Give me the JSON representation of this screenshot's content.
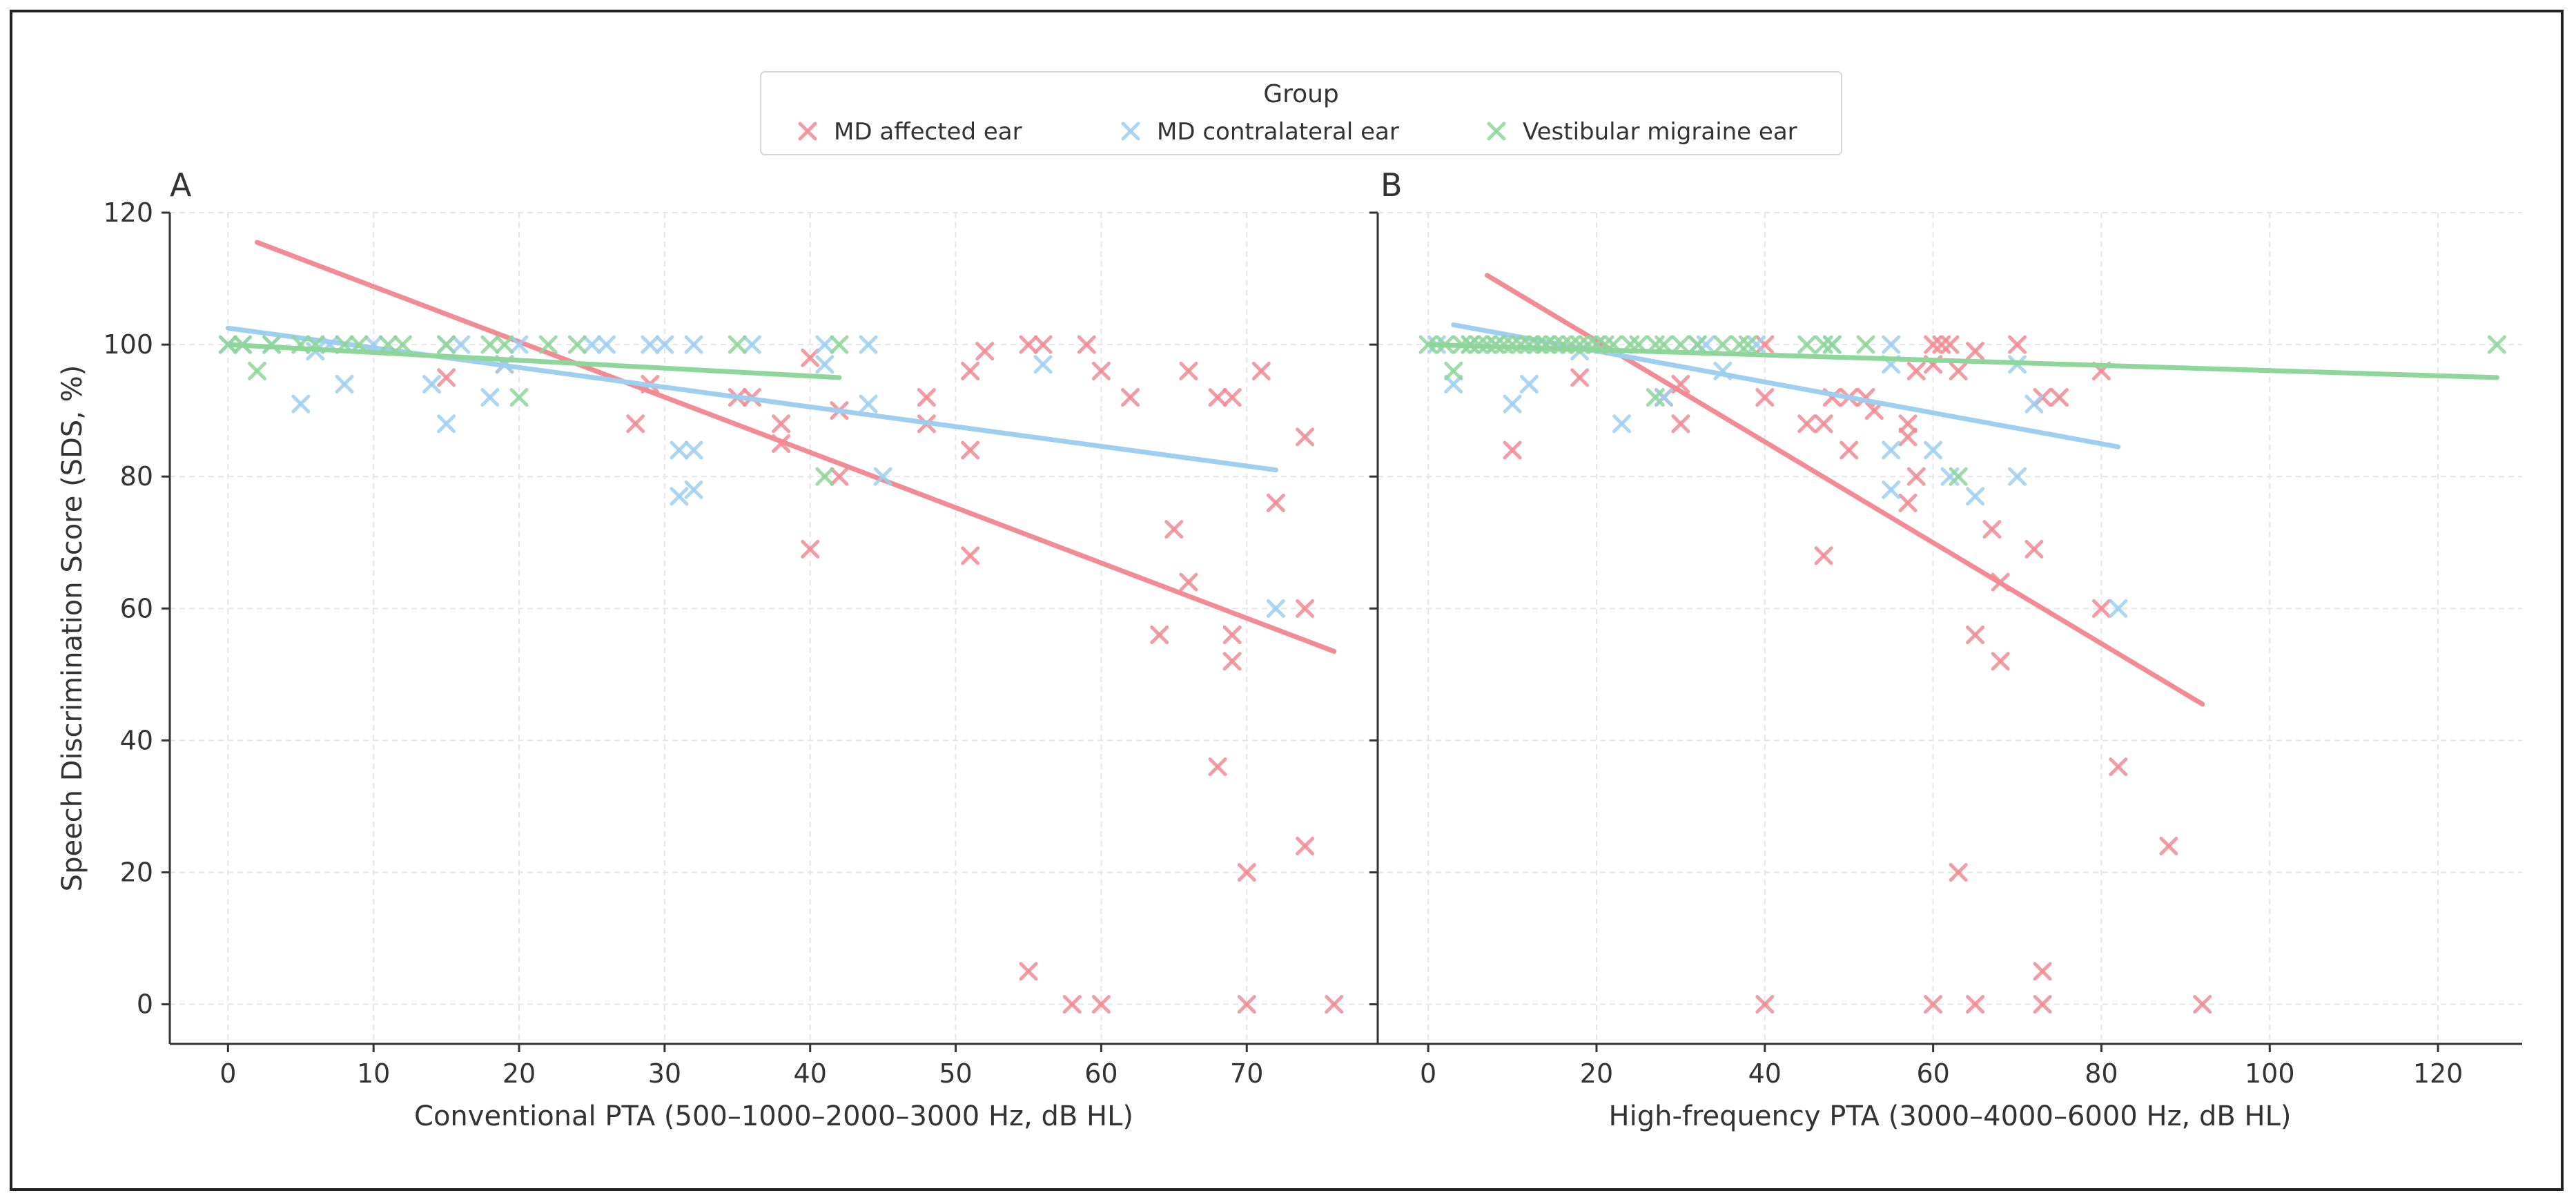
{
  "figure": {
    "legend": {
      "title": "Group",
      "entries": [
        {
          "label": "MD affected ear",
          "color": "#f28b93"
        },
        {
          "label": "MD contralateral ear",
          "color": "#9fcff0"
        },
        {
          "label": "Vestibular migraine ear",
          "color": "#8fd69a"
        }
      ]
    }
  },
  "chart_data": [
    {
      "type": "scatter",
      "panel": "A",
      "title": "",
      "xlabel": "Conventional PTA (500–1000–2000–3000 Hz, dB HL)",
      "ylabel": "Speech Discrimination Score (SDS, %)",
      "xlim": [
        -4,
        79
      ],
      "ylim": [
        -6,
        120
      ],
      "xticks": [
        0,
        10,
        20,
        30,
        40,
        50,
        60,
        70
      ],
      "yticks": [
        0,
        20,
        40,
        60,
        80,
        100,
        120
      ],
      "grid": true,
      "series": [
        {
          "name": "MD affected ear",
          "color": "#f28b93",
          "points": [
            [
              15,
              95
            ],
            [
              19,
              97
            ],
            [
              28,
              88
            ],
            [
              29,
              94
            ],
            [
              35,
              92
            ],
            [
              36,
              92
            ],
            [
              38,
              88
            ],
            [
              38,
              85
            ],
            [
              40,
              98
            ],
            [
              40,
              69
            ],
            [
              42,
              90
            ],
            [
              42,
              80
            ],
            [
              48,
              92
            ],
            [
              48,
              88
            ],
            [
              51,
              96
            ],
            [
              51,
              84
            ],
            [
              51,
              68
            ],
            [
              52,
              99
            ],
            [
              55,
              100
            ],
            [
              56,
              100
            ],
            [
              55,
              5
            ],
            [
              58,
              0
            ],
            [
              59,
              100
            ],
            [
              60,
              96
            ],
            [
              60,
              0
            ],
            [
              62,
              92
            ],
            [
              64,
              56
            ],
            [
              65,
              72
            ],
            [
              66,
              96
            ],
            [
              66,
              64
            ],
            [
              68,
              92
            ],
            [
              68,
              36
            ],
            [
              69,
              92
            ],
            [
              69,
              56
            ],
            [
              69,
              52
            ],
            [
              70,
              20
            ],
            [
              70,
              0
            ],
            [
              71,
              96
            ],
            [
              72,
              76
            ],
            [
              74,
              86
            ],
            [
              74,
              60
            ],
            [
              74,
              24
            ],
            [
              76,
              0
            ]
          ],
          "trend": [
            [
              2,
              115.5
            ],
            [
              76,
              53.5
            ]
          ]
        },
        {
          "name": "MD contralateral ear",
          "color": "#9fcff0",
          "points": [
            [
              0,
              100
            ],
            [
              1,
              100
            ],
            [
              3,
              100
            ],
            [
              5,
              91
            ],
            [
              6,
              99
            ],
            [
              7,
              100
            ],
            [
              8,
              94
            ],
            [
              10,
              100
            ],
            [
              14,
              94
            ],
            [
              15,
              100
            ],
            [
              15,
              88
            ],
            [
              16,
              100
            ],
            [
              18,
              92
            ],
            [
              19,
              97
            ],
            [
              20,
              100
            ],
            [
              25,
              100
            ],
            [
              26,
              100
            ],
            [
              29,
              100
            ],
            [
              30,
              100
            ],
            [
              31,
              84
            ],
            [
              31,
              77
            ],
            [
              32,
              100
            ],
            [
              32,
              84
            ],
            [
              32,
              78
            ],
            [
              36,
              100
            ],
            [
              41,
              100
            ],
            [
              41,
              97
            ],
            [
              44,
              100
            ],
            [
              44,
              91
            ],
            [
              45,
              80
            ],
            [
              56,
              97
            ],
            [
              72,
              60
            ]
          ],
          "trend": [
            [
              0,
              102.5
            ],
            [
              72,
              81
            ]
          ]
        },
        {
          "name": "Vestibular migraine ear",
          "color": "#8fd69a",
          "points": [
            [
              0,
              100
            ],
            [
              1,
              100
            ],
            [
              2,
              96
            ],
            [
              3,
              100
            ],
            [
              5,
              100
            ],
            [
              6,
              100
            ],
            [
              8,
              100
            ],
            [
              9,
              100
            ],
            [
              11,
              100
            ],
            [
              12,
              100
            ],
            [
              15,
              100
            ],
            [
              18,
              100
            ],
            [
              19,
              100
            ],
            [
              20,
              92
            ],
            [
              22,
              100
            ],
            [
              24,
              100
            ],
            [
              35,
              100
            ],
            [
              41,
              80
            ],
            [
              42,
              100
            ]
          ],
          "trend": [
            [
              0,
              100
            ],
            [
              42,
              95
            ]
          ]
        }
      ]
    },
    {
      "type": "scatter",
      "panel": "B",
      "title": "",
      "xlabel": "High-frequency PTA (3000–4000–6000 Hz, dB HL)",
      "ylabel": "",
      "xlim": [
        -6,
        130
      ],
      "ylim": [
        -6,
        120
      ],
      "xticks": [
        0,
        20,
        40,
        60,
        80,
        100,
        120
      ],
      "yticks": [
        0,
        20,
        40,
        60,
        80,
        100,
        120
      ],
      "grid": true,
      "series": [
        {
          "name": "MD affected ear",
          "color": "#f28b93",
          "points": [
            [
              10,
              84
            ],
            [
              18,
              95
            ],
            [
              28,
              92
            ],
            [
              30,
              88
            ],
            [
              30,
              94
            ],
            [
              40,
              100
            ],
            [
              40,
              92
            ],
            [
              40,
              0
            ],
            [
              45,
              88
            ],
            [
              47,
              68
            ],
            [
              47,
              88
            ],
            [
              48,
              92
            ],
            [
              50,
              92
            ],
            [
              50,
              84
            ],
            [
              52,
              92
            ],
            [
              53,
              90
            ],
            [
              57,
              88
            ],
            [
              57,
              86
            ],
            [
              57,
              76
            ],
            [
              58,
              80
            ],
            [
              58,
              96
            ],
            [
              60,
              100
            ],
            [
              60,
              97
            ],
            [
              60,
              0
            ],
            [
              61,
              100
            ],
            [
              62,
              100
            ],
            [
              63,
              96
            ],
            [
              63,
              20
            ],
            [
              65,
              99
            ],
            [
              65,
              56
            ],
            [
              65,
              0
            ],
            [
              67,
              72
            ],
            [
              68,
              64
            ],
            [
              68,
              52
            ],
            [
              70,
              100
            ],
            [
              72,
              69
            ],
            [
              73,
              92
            ],
            [
              73,
              5
            ],
            [
              73,
              0
            ],
            [
              75,
              92
            ],
            [
              80,
              96
            ],
            [
              80,
              60
            ],
            [
              82,
              36
            ],
            [
              88,
              24
            ],
            [
              92,
              0
            ]
          ],
          "trend": [
            [
              7,
              110.5
            ],
            [
              92,
              45.5
            ]
          ]
        },
        {
          "name": "MD contralateral ear",
          "color": "#9fcff0",
          "points": [
            [
              1,
              100
            ],
            [
              3,
              94
            ],
            [
              5,
              100
            ],
            [
              8,
              100
            ],
            [
              10,
              91
            ],
            [
              12,
              94
            ],
            [
              14,
              100
            ],
            [
              18,
              99
            ],
            [
              20,
              100
            ],
            [
              23,
              88
            ],
            [
              28,
              92
            ],
            [
              32,
              100
            ],
            [
              33,
              100
            ],
            [
              35,
              96
            ],
            [
              39,
              100
            ],
            [
              48,
              100
            ],
            [
              55,
              100
            ],
            [
              55,
              97
            ],
            [
              55,
              84
            ],
            [
              55,
              78
            ],
            [
              60,
              84
            ],
            [
              62,
              80
            ],
            [
              65,
              77
            ],
            [
              70,
              97
            ],
            [
              70,
              80
            ],
            [
              72,
              91
            ],
            [
              82,
              60
            ]
          ],
          "trend": [
            [
              3,
              103
            ],
            [
              82,
              84.5
            ]
          ]
        },
        {
          "name": "Vestibular migraine ear",
          "color": "#8fd69a",
          "points": [
            [
              0,
              100
            ],
            [
              2,
              100
            ],
            [
              3,
              96
            ],
            [
              4,
              100
            ],
            [
              5,
              100
            ],
            [
              6,
              100
            ],
            [
              7,
              100
            ],
            [
              8,
              100
            ],
            [
              9,
              100
            ],
            [
              10,
              100
            ],
            [
              11,
              100
            ],
            [
              12,
              100
            ],
            [
              13,
              100
            ],
            [
              14,
              100
            ],
            [
              15,
              100
            ],
            [
              16,
              100
            ],
            [
              17,
              100
            ],
            [
              18,
              100
            ],
            [
              19,
              100
            ],
            [
              20,
              100
            ],
            [
              21,
              100
            ],
            [
              22,
              100
            ],
            [
              24,
              100
            ],
            [
              25,
              100
            ],
            [
              27,
              92
            ],
            [
              27,
              100
            ],
            [
              28,
              100
            ],
            [
              30,
              100
            ],
            [
              32,
              100
            ],
            [
              35,
              100
            ],
            [
              37,
              100
            ],
            [
              38,
              100
            ],
            [
              45,
              100
            ],
            [
              47,
              100
            ],
            [
              48,
              100
            ],
            [
              52,
              100
            ],
            [
              63,
              80
            ],
            [
              127,
              100
            ]
          ],
          "trend": [
            [
              0,
              100
            ],
            [
              127,
              95
            ]
          ]
        }
      ]
    }
  ]
}
